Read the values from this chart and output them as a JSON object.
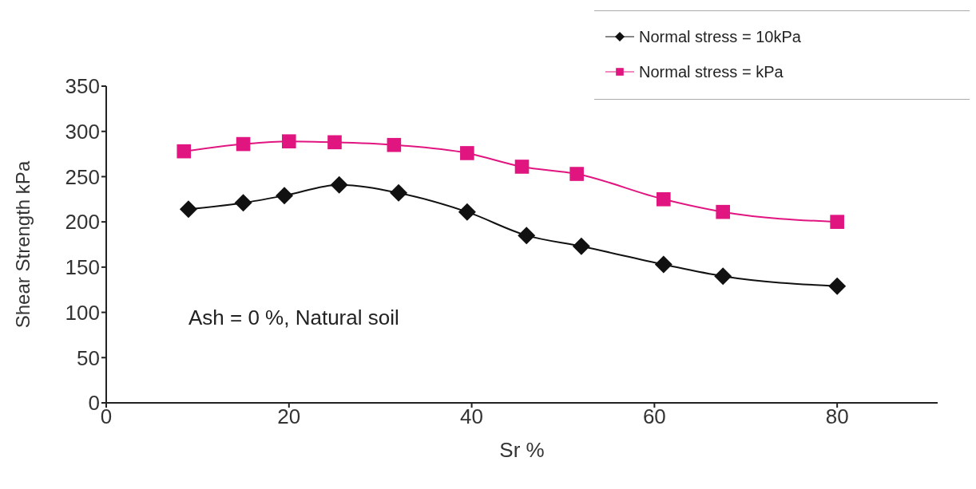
{
  "chart_data": {
    "type": "line",
    "xlabel": "Sr %",
    "ylabel": "Shear Strength kPa",
    "xlim": [
      0,
      91
    ],
    "xticks": [
      0,
      20,
      40,
      60,
      80
    ],
    "ylim": [
      0,
      350
    ],
    "yticks": [
      0,
      50,
      100,
      150,
      200,
      250,
      300,
      350
    ],
    "grid": false,
    "legend": "top right",
    "line_style": "solid",
    "annotations": [
      "Ash = 0 %, Natural soil"
    ],
    "series": [
      {
        "name": "Normal stress = 10kPa",
        "color": "#111111",
        "marker": "diamond",
        "x": [
          9,
          15,
          19.5,
          25.5,
          32,
          39.5,
          46,
          52,
          61,
          67.5,
          80
        ],
        "values": [
          214,
          221,
          229,
          241,
          232,
          211,
          185,
          173,
          153,
          140,
          129
        ]
      },
      {
        "name": "Normal stress = kPa",
        "color": "#e0157f",
        "marker": "square",
        "x": [
          8.5,
          15,
          20,
          25,
          31.5,
          39.5,
          45.5,
          51.5,
          61,
          67.5,
          80
        ],
        "values": [
          278,
          286,
          289,
          288,
          285,
          276,
          261,
          253,
          225,
          211,
          200
        ]
      }
    ]
  }
}
